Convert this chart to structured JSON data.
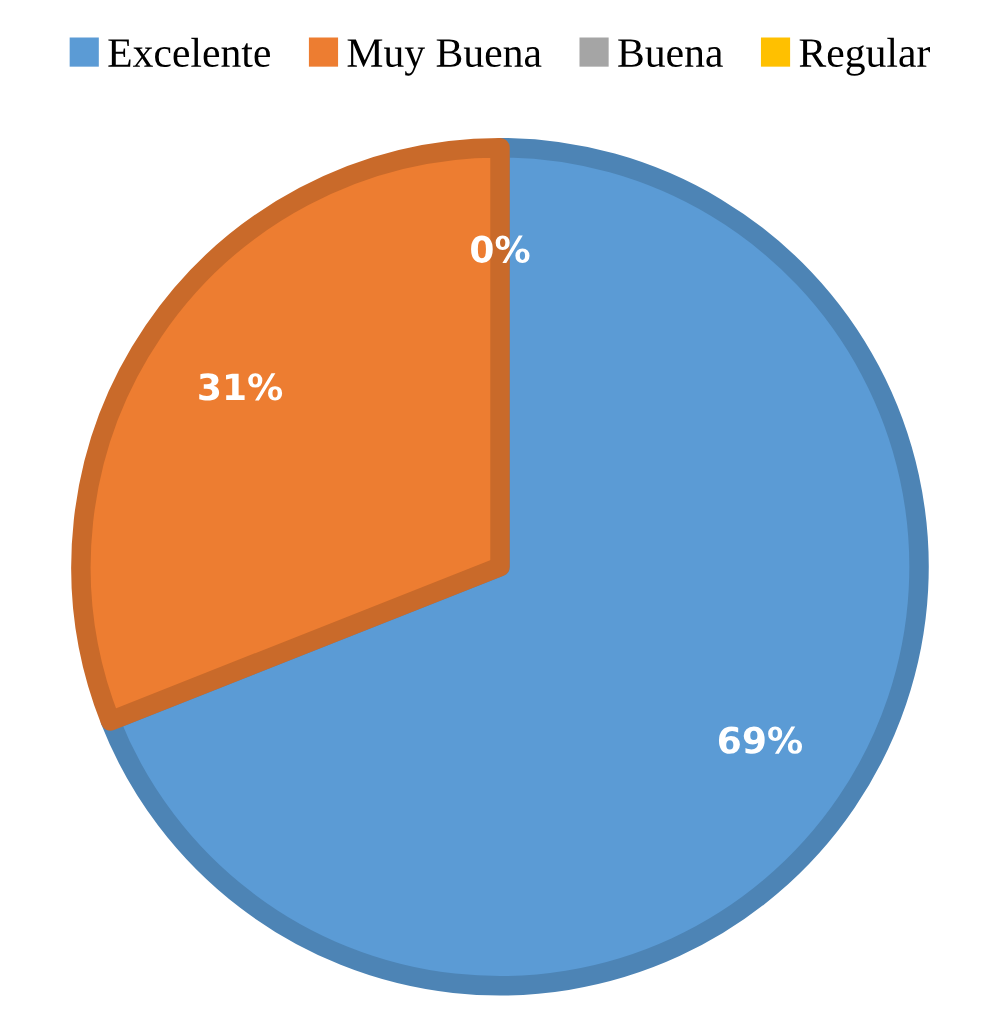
{
  "chart_data": {
    "type": "pie",
    "categories": [
      "Excelente",
      "Muy Buena",
      "Buena",
      "Regular"
    ],
    "values": [
      69,
      31,
      0,
      0
    ],
    "colors": [
      "#5b9bd5",
      "#ed7d31",
      "#a5a5a5",
      "#ffc000"
    ],
    "value_labels": [
      "69%",
      "31%",
      "0%",
      null
    ],
    "legend": "top"
  }
}
